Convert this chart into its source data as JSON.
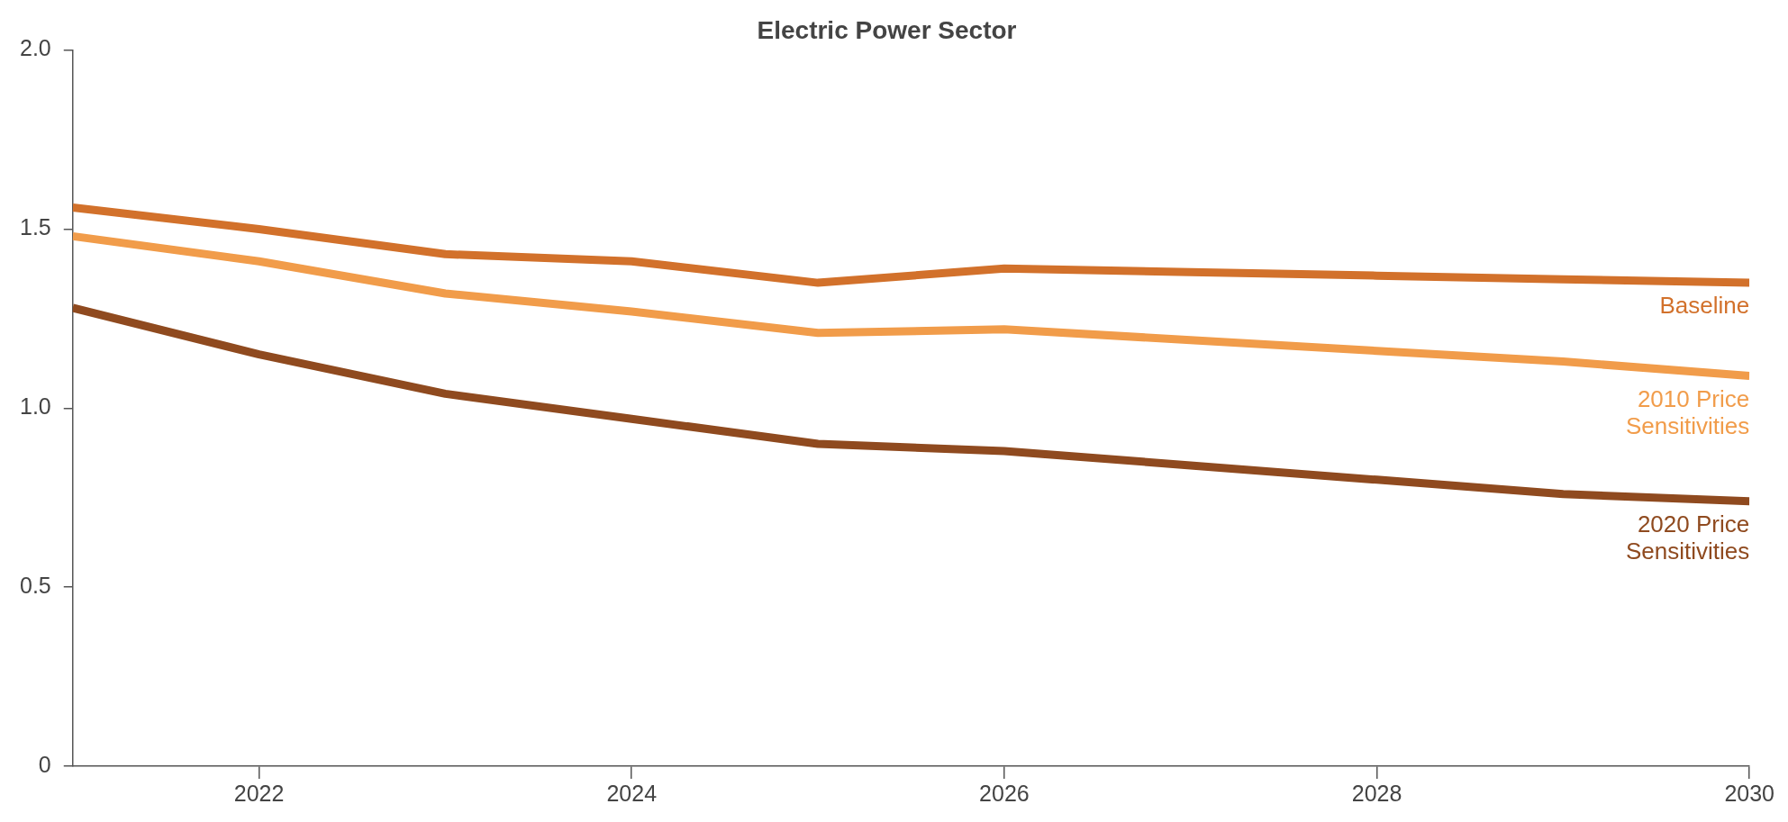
{
  "chart_data": {
    "type": "line",
    "title": "Electric Power Sector",
    "x": [
      2021,
      2022,
      2023,
      2024,
      2025,
      2026,
      2027,
      2028,
      2029,
      2030
    ],
    "series": [
      {
        "name": "Baseline",
        "color": "#d2712b",
        "values": [
          1.56,
          1.5,
          1.43,
          1.41,
          1.35,
          1.39,
          1.38,
          1.37,
          1.36,
          1.35
        ]
      },
      {
        "name": "2010 Price Sensitivities",
        "color": "#f19c4a",
        "values": [
          1.48,
          1.41,
          1.32,
          1.27,
          1.21,
          1.22,
          1.19,
          1.16,
          1.13,
          1.09
        ]
      },
      {
        "name": "2020 Price Sensitivities",
        "color": "#8f4a1f",
        "values": [
          1.28,
          1.15,
          1.04,
          0.97,
          0.9,
          0.88,
          0.84,
          0.8,
          0.76,
          0.74
        ]
      }
    ],
    "xlim": [
      2021,
      2030
    ],
    "xticks": [
      2022,
      2024,
      2026,
      2028,
      2030
    ],
    "ylim": [
      0,
      2
    ],
    "yticks": [
      0,
      0.5,
      {
        "value": 1,
        "label": "1.0"
      },
      1.5,
      {
        "value": 2,
        "label": "2.0"
      }
    ],
    "grid": false,
    "legend": false,
    "marker": "none",
    "line_style": "solid"
  }
}
